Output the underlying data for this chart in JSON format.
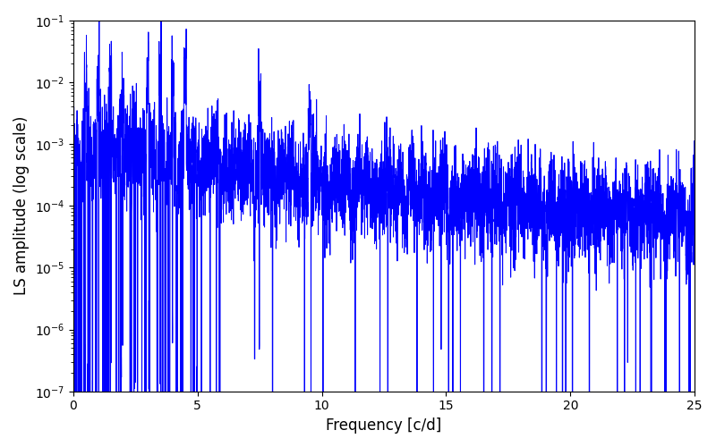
{
  "xlabel": "Frequency [c/d]",
  "ylabel": "LS amplitude (log scale)",
  "xlim": [
    0,
    25
  ],
  "ylim": [
    1e-07,
    0.1
  ],
  "line_color": "#0000ff",
  "line_width": 0.7,
  "figsize": [
    8.0,
    5.0
  ],
  "dpi": 100,
  "background_color": "#ffffff",
  "seed": 42,
  "n_points": 5000,
  "freq_max": 25.0
}
